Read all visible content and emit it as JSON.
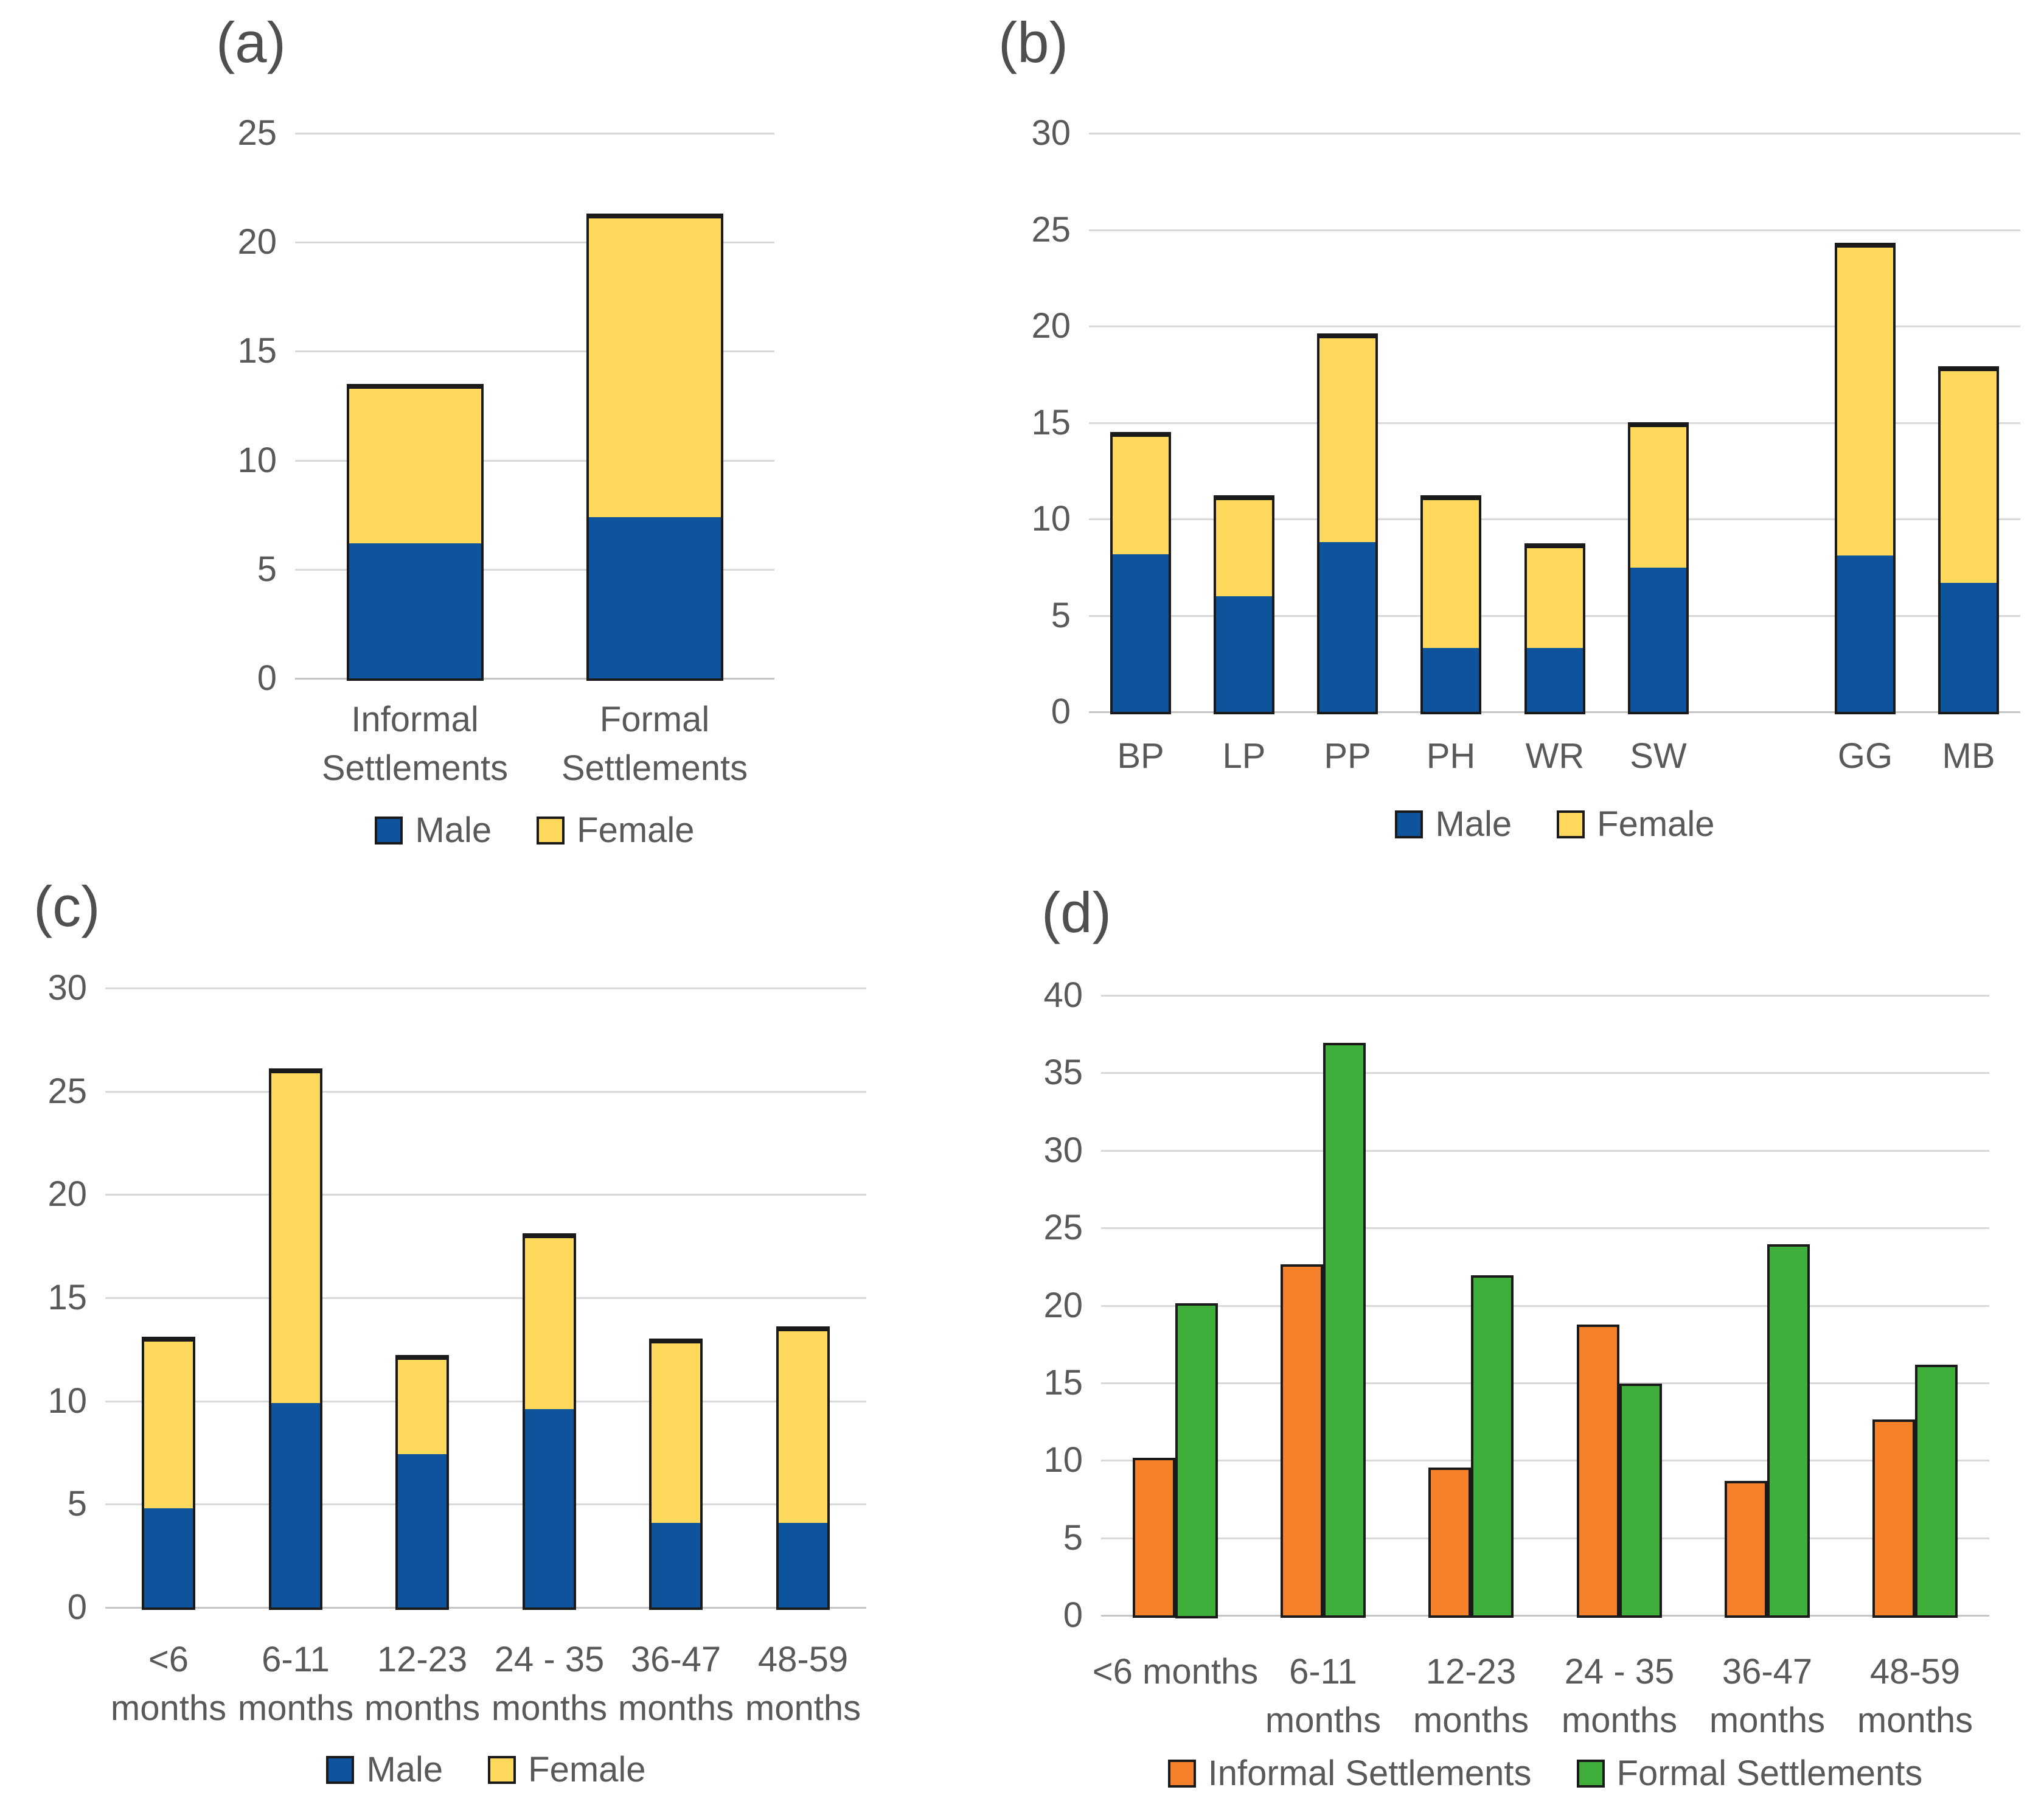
{
  "page": {
    "background": "#ffffff"
  },
  "styles": {
    "grid_color": "#d9d9d9",
    "axis_color": "#c6c6c6",
    "text_color": "#595959",
    "panel_letter_color": "#4f4f4f",
    "bar_border_color": "#1a1a1a",
    "male_color": "#0d549d",
    "female_color": "#ffd95c",
    "informal_color": "#f5812b",
    "formal_color": "#3fae3b"
  },
  "chart_data": [
    {
      "panel_label": "(a)",
      "type": "stacked-bar",
      "categories": [
        [
          "Informal",
          "Settlements"
        ],
        [
          "Formal",
          "Settlements"
        ]
      ],
      "series": [
        {
          "name": "Male",
          "color": "#0d549d",
          "values": [
            6.2,
            7.4
          ]
        },
        {
          "name": "Female",
          "color": "#ffd95c",
          "values": [
            7.2,
            13.8
          ]
        }
      ],
      "stack_totals": [
        13.4,
        21.2
      ],
      "ylim": [
        0,
        25
      ],
      "ytick_step": 5,
      "grid": true,
      "legend_position": "bottom"
    },
    {
      "panel_label": "(b)",
      "type": "stacked-bar",
      "categories": [
        [
          "BP"
        ],
        [
          "LP"
        ],
        [
          "PP"
        ],
        [
          "PH"
        ],
        [
          "WR"
        ],
        [
          "SW"
        ],
        [
          ""
        ],
        [
          "GG"
        ],
        [
          "MB"
        ]
      ],
      "series": [
        {
          "name": "Male",
          "color": "#0d549d",
          "values": [
            8.2,
            6.0,
            8.8,
            3.3,
            3.3,
            7.5,
            null,
            8.1,
            6.7
          ]
        },
        {
          "name": "Female",
          "color": "#ffd95c",
          "values": [
            6.2,
            5.1,
            10.7,
            7.8,
            5.3,
            7.4,
            null,
            16.1,
            11.1
          ]
        }
      ],
      "stack_totals": [
        14.4,
        11.1,
        19.5,
        11.1,
        8.6,
        14.9,
        null,
        24.2,
        17.8
      ],
      "ylim": [
        0,
        30
      ],
      "ytick_step": 5,
      "grid": true,
      "legend_position": "bottom"
    },
    {
      "panel_label": "(c)",
      "type": "stacked-bar",
      "categories": [
        [
          "<6",
          "months"
        ],
        [
          "6-11",
          "months"
        ],
        [
          "12-23",
          "months"
        ],
        [
          "24 - 35",
          "months"
        ],
        [
          "36-47",
          "months"
        ],
        [
          "48-59",
          "months"
        ]
      ],
      "series": [
        {
          "name": "Male",
          "color": "#0d549d",
          "values": [
            4.8,
            9.9,
            7.4,
            9.6,
            4.1,
            4.1
          ]
        },
        {
          "name": "Female",
          "color": "#ffd95c",
          "values": [
            8.2,
            16.1,
            4.7,
            8.4,
            8.8,
            9.4
          ]
        }
      ],
      "stack_totals": [
        13.0,
        26.0,
        12.1,
        18.0,
        12.9,
        13.5
      ],
      "ylim": [
        0,
        30
      ],
      "ytick_step": 5,
      "grid": true,
      "legend_position": "bottom"
    },
    {
      "panel_label": "(d)",
      "type": "grouped-bar",
      "categories": [
        [
          "<6 months"
        ],
        [
          "6-11",
          "months"
        ],
        [
          "12-23",
          "months"
        ],
        [
          "24 - 35",
          "months"
        ],
        [
          "36-47",
          "months"
        ],
        [
          "48-59",
          "months"
        ]
      ],
      "series": [
        {
          "name": "Informal Settlements",
          "color": "#f5812b",
          "values": [
            10.0,
            22.5,
            9.4,
            18.6,
            8.5,
            12.5
          ]
        },
        {
          "name": "Formal Settlements",
          "color": "#3fae3b",
          "values": [
            20.0,
            36.8,
            21.8,
            14.8,
            23.8,
            16.0
          ]
        }
      ],
      "ylim": [
        0,
        40
      ],
      "ytick_step": 5,
      "grid": true,
      "legend_position": "bottom"
    }
  ]
}
